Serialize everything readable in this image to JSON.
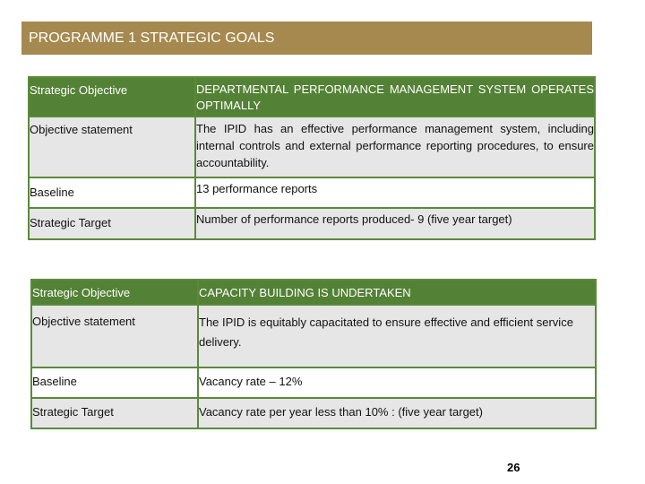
{
  "title": "PROGRAMME 1 STRATEGIC GOALS",
  "tables": [
    {
      "rows": [
        {
          "label": "Strategic Objective",
          "value": "DEPARTMENTAL PERFORMANCE MANAGEMENT SYSTEM OPERATES OPTIMALLY"
        },
        {
          "label": "Objective statement",
          "value": "The IPID has an effective performance management system, including internal controls and external performance reporting procedures, to ensure accountability."
        },
        {
          "label": "Baseline",
          "value": "13 performance reports"
        },
        {
          "label": "Strategic Target",
          "value": "Number of performance reports produced- 9 (five year target)"
        }
      ]
    },
    {
      "rows": [
        {
          "label": "Strategic Objective",
          "value": "CAPACITY BUILDING IS UNDERTAKEN"
        },
        {
          "label": "Objective statement",
          "value": "The IPID is equitably capacitated to ensure effective and efficient service delivery."
        },
        {
          "label": "Baseline",
          "value": "Vacancy rate – 12%"
        },
        {
          "label": "Strategic Target",
          "value": "Vacancy rate per year less than 10% : (five year target)"
        }
      ]
    }
  ],
  "page_number": "26",
  "colors": {
    "title_bar": "#a5894e",
    "header_row": "#538135",
    "border": "#5a8a3a",
    "alt_row": "#e6e6e6"
  }
}
